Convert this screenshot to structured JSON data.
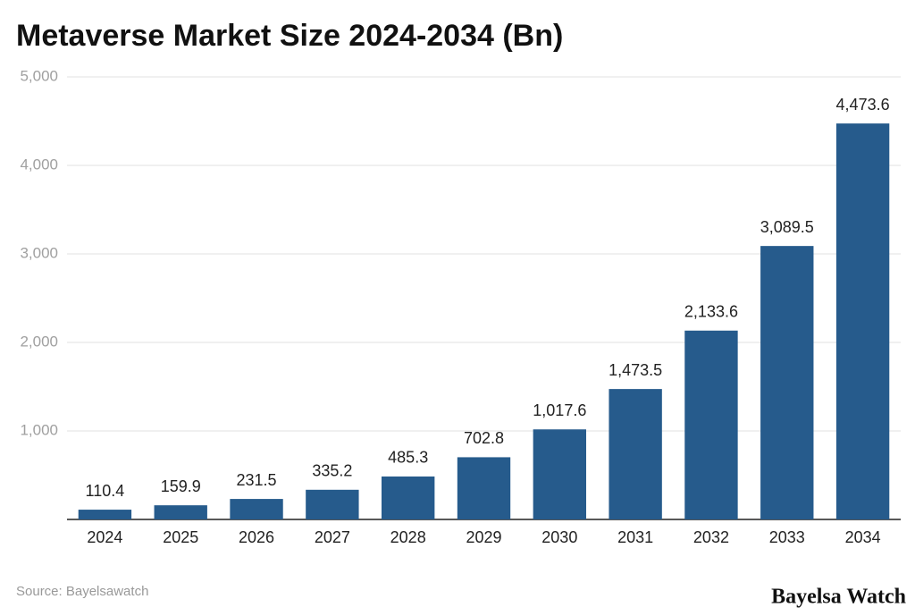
{
  "chart_data": {
    "type": "bar",
    "title": "Metaverse Market Size 2024-2034 (Bn)",
    "categories": [
      "2024",
      "2025",
      "2026",
      "2027",
      "2028",
      "2029",
      "2030",
      "2031",
      "2032",
      "2033",
      "2034"
    ],
    "values": [
      110.4,
      159.9,
      231.5,
      335.2,
      485.3,
      702.8,
      1017.6,
      1473.5,
      2133.6,
      3089.5,
      4473.6
    ],
    "value_labels": [
      "110.4",
      "159.9",
      "231.5",
      "335.2",
      "485.3",
      "702.8",
      "1,017.6",
      "1,473.5",
      "2,133.6",
      "3,089.5",
      "4,473.6"
    ],
    "color": "#265b8c",
    "ylim": [
      0,
      5000
    ],
    "yticks": [
      {
        "value": 1000,
        "label": "1,000"
      },
      {
        "value": 2000,
        "label": "2,000"
      },
      {
        "value": 3000,
        "label": "3,000"
      },
      {
        "value": 4000,
        "label": "4,000"
      },
      {
        "value": 5000,
        "label": "5,000"
      }
    ],
    "grid": true,
    "source": "Source: Bayelsawatch",
    "brand": "Bayelsa Watch"
  }
}
